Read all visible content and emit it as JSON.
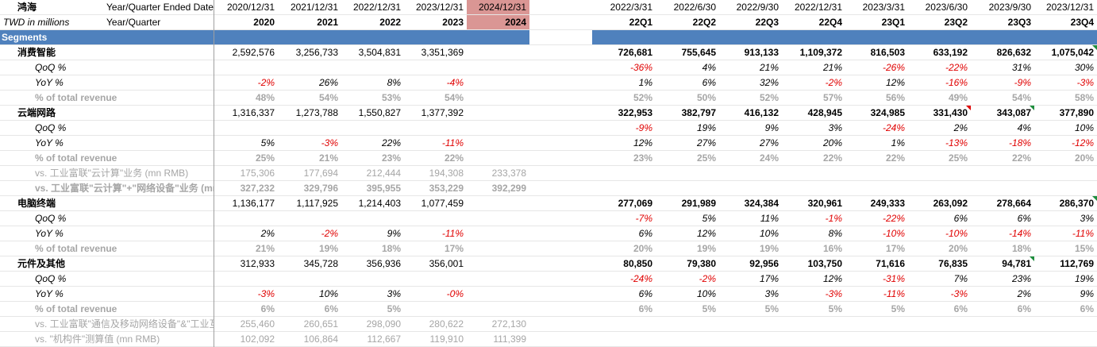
{
  "header": {
    "company": "鸿海",
    "date_label": "Year/Quarter Ended Date",
    "unit_label": "TWD in millions",
    "period_label": "Year/Quarter",
    "annual_dates": [
      "2020/12/31",
      "2021/12/31",
      "2022/12/31",
      "2023/12/31",
      "2024/12/31"
    ],
    "annual_labels": [
      "2020",
      "2021",
      "2022",
      "2023",
      "2024"
    ],
    "quarter_dates": [
      "2022/3/31",
      "2022/6/30",
      "2022/9/30",
      "2022/12/31",
      "2023/3/31",
      "2023/6/30",
      "2023/9/30",
      "2023/12/31"
    ],
    "quarter_labels": [
      "22Q1",
      "22Q2",
      "22Q3",
      "22Q4",
      "23Q1",
      "23Q2",
      "23Q3",
      "23Q4"
    ]
  },
  "segments_label": "Segments",
  "rows": [
    {
      "label": "消费智能",
      "style": "seg",
      "annual": [
        "2,592,576",
        "3,256,733",
        "3,504,831",
        "3,351,369",
        ""
      ],
      "quarterly": [
        "726,681",
        "755,645",
        "913,133",
        "1,109,372",
        "816,503",
        "633,192",
        "826,632",
        "1,075,042"
      ],
      "qflags": [
        "",
        "",
        "",
        "",
        "",
        "",
        "",
        "green"
      ]
    },
    {
      "label": "QoQ %",
      "style": "pct",
      "annual": [
        "",
        "",
        "",
        "",
        ""
      ],
      "quarterly": [
        "-36%",
        "4%",
        "21%",
        "21%",
        "-26%",
        "-22%",
        "31%",
        "30%"
      ]
    },
    {
      "label": "YoY %",
      "style": "pct",
      "annual": [
        "-2%",
        "26%",
        "8%",
        "-4%",
        ""
      ],
      "quarterly": [
        "1%",
        "6%",
        "32%",
        "-2%",
        "12%",
        "-16%",
        "-9%",
        "-3%"
      ]
    },
    {
      "label": "% of total revenue",
      "style": "share",
      "annual": [
        "48%",
        "54%",
        "53%",
        "54%",
        ""
      ],
      "quarterly": [
        "52%",
        "50%",
        "52%",
        "57%",
        "56%",
        "49%",
        "54%",
        "58%"
      ]
    },
    {
      "label": "云端网路",
      "style": "seg",
      "annual": [
        "1,316,337",
        "1,273,788",
        "1,550,827",
        "1,377,392",
        ""
      ],
      "quarterly": [
        "322,953",
        "382,797",
        "416,132",
        "428,945",
        "324,985",
        "331,430",
        "343,087",
        "377,890"
      ],
      "qflags": [
        "",
        "",
        "",
        "",
        "",
        "red",
        "green",
        ""
      ]
    },
    {
      "label": "QoQ %",
      "style": "pct",
      "annual": [
        "",
        "",
        "",
        "",
        ""
      ],
      "quarterly": [
        "-9%",
        "19%",
        "9%",
        "3%",
        "-24%",
        "2%",
        "4%",
        "10%"
      ]
    },
    {
      "label": "YoY %",
      "style": "pct",
      "annual": [
        "5%",
        "-3%",
        "22%",
        "-11%",
        ""
      ],
      "quarterly": [
        "12%",
        "27%",
        "27%",
        "20%",
        "1%",
        "-13%",
        "-18%",
        "-12%"
      ]
    },
    {
      "label": "% of total revenue",
      "style": "share",
      "annual": [
        "25%",
        "21%",
        "23%",
        "22%",
        ""
      ],
      "quarterly": [
        "23%",
        "25%",
        "24%",
        "22%",
        "22%",
        "25%",
        "22%",
        "20%"
      ]
    },
    {
      "label": "vs. 工业富联\"云计算\"业务 (mn RMB)",
      "style": "ref",
      "annual": [
        "175,306",
        "177,694",
        "212,444",
        "194,308",
        "233,378"
      ],
      "quarterly": [
        "",
        "",
        "",
        "",
        "",
        "",
        "",
        ""
      ]
    },
    {
      "label": "vs. 工业富联\"云计算\"+\"网络设备\"业务 (mn RMB)",
      "style": "refbold",
      "annual": [
        "327,232",
        "329,796",
        "395,955",
        "353,229",
        "392,299"
      ],
      "quarterly": [
        "",
        "",
        "",
        "",
        "",
        "",
        "",
        ""
      ]
    },
    {
      "label": "电脑终端",
      "style": "seg",
      "annual": [
        "1,136,177",
        "1,117,925",
        "1,214,403",
        "1,077,459",
        ""
      ],
      "quarterly": [
        "277,069",
        "291,989",
        "324,384",
        "320,961",
        "249,333",
        "263,092",
        "278,664",
        "286,370"
      ],
      "qflags": [
        "",
        "",
        "",
        "",
        "",
        "",
        "",
        "green"
      ]
    },
    {
      "label": "QoQ %",
      "style": "pct",
      "annual": [
        "",
        "",
        "",
        "",
        ""
      ],
      "quarterly": [
        "-7%",
        "5%",
        "11%",
        "-1%",
        "-22%",
        "6%",
        "6%",
        "3%"
      ]
    },
    {
      "label": "YoY %",
      "style": "pct",
      "annual": [
        "2%",
        "-2%",
        "9%",
        "-11%",
        ""
      ],
      "quarterly": [
        "6%",
        "12%",
        "10%",
        "8%",
        "-10%",
        "-10%",
        "-14%",
        "-11%"
      ]
    },
    {
      "label": "% of total revenue",
      "style": "share",
      "annual": [
        "21%",
        "19%",
        "18%",
        "17%",
        ""
      ],
      "quarterly": [
        "20%",
        "19%",
        "19%",
        "16%",
        "17%",
        "20%",
        "18%",
        "15%"
      ]
    },
    {
      "label": "元件及其他",
      "style": "seg",
      "annual": [
        "312,933",
        "345,728",
        "356,936",
        "356,001",
        ""
      ],
      "quarterly": [
        "80,850",
        "79,380",
        "92,956",
        "103,750",
        "71,616",
        "76,835",
        "94,781",
        "112,769"
      ],
      "qflags": [
        "",
        "",
        "",
        "",
        "",
        "",
        "green",
        ""
      ]
    },
    {
      "label": "QoQ %",
      "style": "pct",
      "annual": [
        "",
        "",
        "",
        "",
        ""
      ],
      "quarterly": [
        "-24%",
        "-2%",
        "17%",
        "12%",
        "-31%",
        "7%",
        "23%",
        "19%"
      ]
    },
    {
      "label": "YoY %",
      "style": "pct",
      "annual": [
        "-3%",
        "10%",
        "3%",
        "-0%",
        ""
      ],
      "quarterly": [
        "6%",
        "10%",
        "3%",
        "-3%",
        "-11%",
        "-3%",
        "2%",
        "9%"
      ]
    },
    {
      "label": "% of total revenue",
      "style": "share",
      "annual": [
        "6%",
        "6%",
        "5%",
        "",
        ""
      ],
      "quarterly": [
        "6%",
        "5%",
        "5%",
        "5%",
        "5%",
        "6%",
        "6%",
        "6%"
      ]
    },
    {
      "label": "vs. 工业富联\"通信及移动网络设备\"&\"工业互联网\"业务",
      "style": "ref",
      "annual": [
        "255,460",
        "260,651",
        "298,090",
        "280,622",
        "272,130"
      ],
      "quarterly": [
        "",
        "",
        "",
        "",
        "",
        "",
        "",
        ""
      ]
    },
    {
      "label": "vs. \"机构件\"测算值 (mn RMB)",
      "style": "ref",
      "annual": [
        "102,092",
        "106,864",
        "112,667",
        "119,910",
        "111,399"
      ],
      "quarterly": [
        "",
        "",
        "",
        "",
        "",
        "",
        "",
        ""
      ]
    }
  ]
}
